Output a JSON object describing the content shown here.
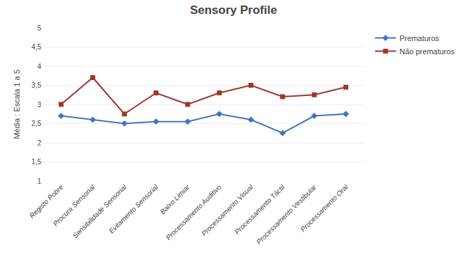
{
  "chart_data": {
    "type": "line",
    "title": "Sensory Profile",
    "ylabel": "Média : Escala 1 a 5",
    "categories": [
      "Registo Pobre",
      "Procura Sensorial",
      "Sensibilidade Sensorial",
      "Evitamento Sensorial",
      "Baixo Limiar",
      "Processamento Auditivo",
      "Processamento Visual",
      "Processamento Táctil",
      "Processamento Vestibular",
      "Processamento Oral"
    ],
    "series": [
      {
        "name": "Prematuros",
        "color": "#4472C4",
        "marker": "diamond",
        "values": [
          2.7,
          2.6,
          2.5,
          2.55,
          2.55,
          2.75,
          2.6,
          2.25,
          2.7,
          2.75
        ]
      },
      {
        "name": "Não prematuros",
        "color": "#A0352A",
        "marker": "square",
        "values": [
          3.0,
          3.7,
          2.75,
          3.3,
          3.0,
          3.3,
          3.5,
          3.2,
          3.25,
          3.45
        ]
      }
    ],
    "ylim": [
      1,
      5
    ],
    "yticks": [
      1,
      {
        "value": 1.5,
        "label": "1,5"
      },
      2,
      {
        "value": 2.5,
        "label": "2,5"
      },
      3,
      {
        "value": 3.5,
        "label": "3,5"
      },
      4,
      {
        "value": 4.5,
        "label": "4,5"
      },
      5
    ],
    "grid": "y",
    "legend": "right"
  }
}
